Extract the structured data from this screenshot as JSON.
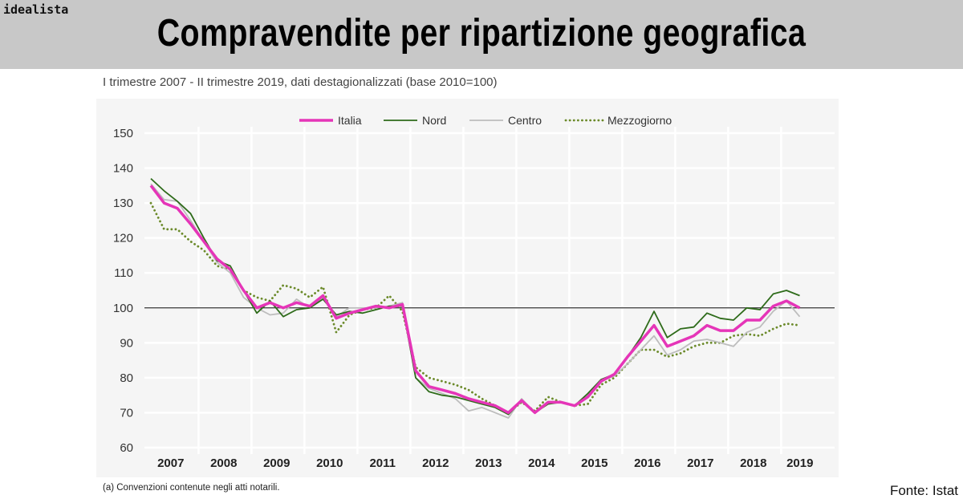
{
  "brand": "idealista",
  "title": "Compravendite per ripartizione geografica",
  "subtitle": "I trimestre 2007 - II trimestre 2019, dati destagionalizzati (base 2010=100)",
  "footnote": "(a) Convenzioni contenute negli atti notarili.",
  "source": "Fonte: Istat",
  "chart_data": {
    "type": "line",
    "title": "",
    "xlabel": "",
    "ylabel": "",
    "ylim": [
      60,
      150
    ],
    "yticks": [
      60,
      70,
      80,
      90,
      100,
      110,
      120,
      130,
      140,
      150
    ],
    "x_tick_labels": [
      "2007",
      "2008",
      "2009",
      "2010",
      "2011",
      "2012",
      "2013",
      "2014",
      "2015",
      "2016",
      "2017",
      "2018",
      "2019"
    ],
    "x_start": "2007-Q1",
    "x_end": "2019-Q2",
    "frequency": "quarterly",
    "reference_line": 100,
    "grid": true,
    "legend_position": "top",
    "series": [
      {
        "name": "Italia",
        "color": "#e535b8",
        "style": "solid-thick",
        "values": [
          135,
          130,
          128.5,
          124,
          119,
          114,
          111,
          105,
          100,
          101.5,
          100,
          101.5,
          100.5,
          103.5,
          97,
          98.5,
          99.5,
          100.5,
          100,
          101,
          82,
          77.5,
          76.5,
          75.5,
          74,
          73,
          72,
          70,
          73.5,
          70,
          73,
          73,
          72,
          74.5,
          79,
          81,
          86,
          90.5,
          95,
          89,
          90.5,
          92,
          95,
          93.5,
          93.5,
          96.5,
          96.5,
          100.5,
          102,
          100
        ]
      },
      {
        "name": "Nord",
        "color": "#2e6b1a",
        "style": "solid",
        "values": [
          137,
          133.5,
          130.5,
          127,
          120,
          113.5,
          112,
          105,
          98.5,
          102,
          97.5,
          99.5,
          100,
          102.5,
          98,
          99,
          98.5,
          99.5,
          100.5,
          100.5,
          80,
          76,
          75,
          74.5,
          73.5,
          72.5,
          71.5,
          69.5,
          73.5,
          70,
          72.5,
          73,
          72,
          75.5,
          79.5,
          81,
          86,
          91.5,
          99,
          91.5,
          94,
          94.5,
          98.5,
          97,
          96.5,
          100,
          99.5,
          104,
          105,
          103.5
        ]
      },
      {
        "name": "Centro",
        "color": "#bdbdbd",
        "style": "solid",
        "values": [
          135.5,
          131,
          130.5,
          125,
          119,
          113,
          110,
          103,
          100,
          98,
          98.5,
          102.5,
          100,
          103,
          97.5,
          100,
          100,
          100,
          100.5,
          101.5,
          80,
          77,
          75.5,
          74,
          70.5,
          71.5,
          70,
          68.5,
          74,
          70,
          73,
          73,
          72,
          75,
          79,
          80.5,
          84,
          88,
          92,
          86.5,
          88,
          90.5,
          91,
          90,
          89,
          93,
          94.5,
          99,
          102,
          97.5
        ]
      },
      {
        "name": "Mezzogiorno",
        "color": "#6b8a2a",
        "style": "dotted",
        "values": [
          130,
          122.5,
          122.5,
          119,
          116.5,
          112,
          111,
          105,
          103,
          102,
          106.5,
          105.5,
          103,
          106,
          93,
          98,
          99.5,
          100,
          103.5,
          99,
          83,
          80,
          79,
          78,
          76.5,
          74,
          72,
          70,
          73,
          70.5,
          74.5,
          73,
          72,
          72.5,
          78,
          80,
          84,
          88,
          88,
          86,
          87,
          89,
          90,
          90,
          92,
          92.5,
          92,
          94,
          95.5,
          95
        ]
      }
    ]
  }
}
